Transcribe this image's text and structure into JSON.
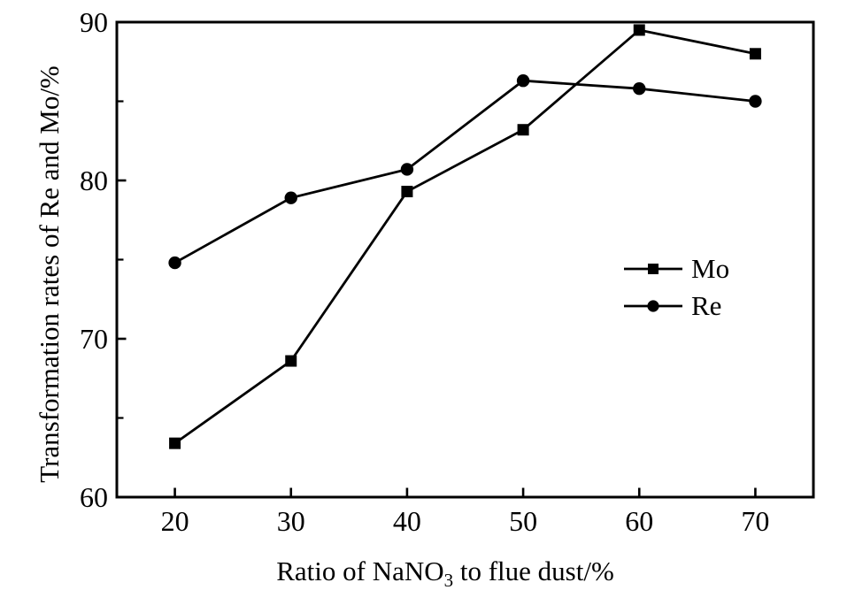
{
  "figure": {
    "background": "#ffffff",
    "ink": "#000000"
  },
  "chart_data": {
    "type": "line",
    "title": "",
    "xlabel": {
      "prefix": "Ratio of NaNO",
      "subscript": "3",
      "suffix": " to flue dust/%"
    },
    "ylabel": "Transformation rates of Re and Mo/%",
    "x": [
      20,
      30,
      40,
      50,
      60,
      70
    ],
    "series": [
      {
        "name": "Mo",
        "marker": "square",
        "values": [
          63.4,
          68.6,
          79.3,
          83.2,
          89.5,
          88.0
        ]
      },
      {
        "name": "Re",
        "marker": "circle",
        "values": [
          74.8,
          78.9,
          80.7,
          86.3,
          85.8,
          85.0
        ]
      }
    ],
    "xlim": [
      15,
      75
    ],
    "ylim": [
      60,
      90
    ],
    "x_ticks": [
      20,
      30,
      40,
      50,
      60,
      70
    ],
    "y_ticks_major": [
      60,
      70,
      80,
      90
    ],
    "y_ticks_minor": [
      65,
      75,
      85
    ],
    "grid": false,
    "legend_position": "center-right",
    "line_color": "#000000",
    "marker_color": "#000000"
  }
}
